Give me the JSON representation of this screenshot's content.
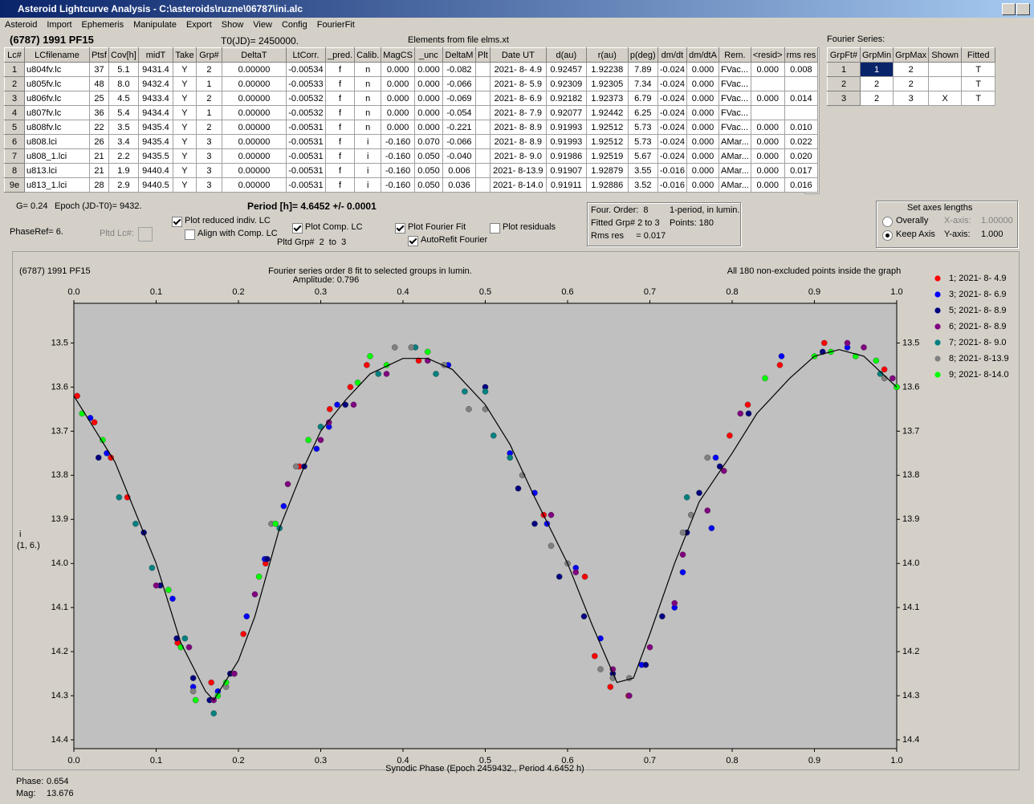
{
  "window": {
    "title": "Asteroid Lightcurve Analysis - C:\\asteroids\\ruzne\\06787\\ini.alc"
  },
  "menu": [
    "Asteroid",
    "Import",
    "Ephemeris",
    "Manipulate",
    "Export",
    "Show",
    "View",
    "Config",
    "FourierFit"
  ],
  "header": {
    "object": "(6787) 1991 PF15",
    "t0": "T0(JD)= 2450000.",
    "elements": "Elements from file elms.xt",
    "fourier_label": "Fourier Series:"
  },
  "table": {
    "columns": [
      "Lc#",
      "LCfilename",
      "Ptsf",
      "Cov[h]",
      "midT",
      "Take",
      "Grp#",
      "DeltaT",
      "LtCorr.",
      "_pred.",
      "Calib.",
      "MagCS",
      "_unc",
      "DeltaM",
      "Plt",
      "Date UT",
      "d(au)",
      "r(au)",
      "p(deg)",
      "dm/dt",
      "dm/dtA",
      "Rem.",
      "<resid>",
      "rms res"
    ],
    "rows": [
      [
        "1",
        "u804fv.lc",
        "37",
        "5.1",
        "9431.4",
        "Y",
        "2",
        "0.00000",
        "-0.00534",
        "f",
        "n",
        "0.000",
        "0.000",
        "-0.082",
        null,
        "2021- 8- 4.9",
        "0.92457",
        "1.92238",
        "7.89",
        "-0.024",
        "0.000",
        "FVac...",
        "0.000",
        "0.008"
      ],
      [
        "2",
        "u805fv.lc",
        "48",
        "8.0",
        "9432.4",
        "Y",
        "1",
        "0.00000",
        "-0.00533",
        "f",
        "n",
        "0.000",
        "0.000",
        "-0.066",
        null,
        "2021- 8- 5.9",
        "0.92309",
        "1.92305",
        "7.34",
        "-0.024",
        "0.000",
        "FVac...",
        null,
        null
      ],
      [
        "3",
        "u806fv.lc",
        "25",
        "4.5",
        "9433.4",
        "Y",
        "2",
        "0.00000",
        "-0.00532",
        "f",
        "n",
        "0.000",
        "0.000",
        "-0.069",
        null,
        "2021- 8- 6.9",
        "0.92182",
        "1.92373",
        "6.79",
        "-0.024",
        "0.000",
        "FVac...",
        "0.000",
        "0.014"
      ],
      [
        "4",
        "u807fv.lc",
        "36",
        "5.4",
        "9434.4",
        "Y",
        "1",
        "0.00000",
        "-0.00532",
        "f",
        "n",
        "0.000",
        "0.000",
        "-0.054",
        null,
        "2021- 8- 7.9",
        "0.92077",
        "1.92442",
        "6.25",
        "-0.024",
        "0.000",
        "FVac...",
        null,
        null
      ],
      [
        "5",
        "u808fv.lc",
        "22",
        "3.5",
        "9435.4",
        "Y",
        "2",
        "0.00000",
        "-0.00531",
        "f",
        "n",
        "0.000",
        "0.000",
        "-0.221",
        null,
        "2021- 8- 8.9",
        "0.91993",
        "1.92512",
        "5.73",
        "-0.024",
        "0.000",
        "FVac...",
        "0.000",
        "0.010"
      ],
      [
        "6",
        "u808.lci",
        "26",
        "3.4",
        "9435.4",
        "Y",
        "3",
        "0.00000",
        "-0.00531",
        "f",
        "i",
        "-0.160",
        "0.070",
        "-0.066",
        null,
        "2021- 8- 8.9",
        "0.91993",
        "1.92512",
        "5.73",
        "-0.024",
        "0.000",
        "AMar...",
        "0.000",
        "0.022"
      ],
      [
        "7",
        "u808_1.lci",
        "21",
        "2.2",
        "9435.5",
        "Y",
        "3",
        "0.00000",
        "-0.00531",
        "f",
        "i",
        "-0.160",
        "0.050",
        "-0.040",
        null,
        "2021- 8- 9.0",
        "0.91986",
        "1.92519",
        "5.67",
        "-0.024",
        "0.000",
        "AMar...",
        "0.000",
        "0.020"
      ],
      [
        "8",
        "u813.lci",
        "21",
        "1.9",
        "9440.4",
        "Y",
        "3",
        "0.00000",
        "-0.00531",
        "f",
        "i",
        "-0.160",
        "0.050",
        "0.006",
        null,
        "2021- 8-13.9",
        "0.91907",
        "1.92879",
        "3.55",
        "-0.016",
        "0.000",
        "AMar...",
        "0.000",
        "0.017"
      ],
      [
        "9e",
        "u813_1.lci",
        "28",
        "2.9",
        "9440.5",
        "Y",
        "3",
        "0.00000",
        "-0.00531",
        "f",
        "i",
        "-0.160",
        "0.050",
        "0.036",
        null,
        "2021- 8-14.0",
        "0.91911",
        "1.92886",
        "3.52",
        "-0.016",
        "0.000",
        "AMar...",
        "0.000",
        "0.016"
      ]
    ]
  },
  "fourier_table": {
    "columns": [
      "GrpFt#",
      "GrpMin",
      "GrpMax",
      "Shown",
      "Fitted"
    ],
    "rows": [
      [
        "1",
        "1",
        "2",
        null,
        "T"
      ],
      [
        "2",
        "2",
        "2",
        null,
        "T"
      ],
      [
        "3",
        "2",
        "3",
        "X",
        "T"
      ]
    ]
  },
  "controls": {
    "g": "G= 0.24",
    "epoch": "Epoch (JD-T0)= 9432.",
    "period": "Period [h]= 4.6452 +/- 0.0001",
    "phase_ref": "PhaseRef= 6.",
    "pltd_lc": "Pltd Lc#:",
    "pltd_grp": "Pltd Grp#  2  to  3",
    "checkboxes": [
      {
        "label": "Plot reduced indiv. LC",
        "checked": true
      },
      {
        "label": "Align with Comp. LC",
        "checked": false
      },
      {
        "label": "Plot Comp. LC",
        "checked": true
      },
      {
        "label": "Plot Fourier Fit",
        "checked": true
      },
      {
        "label": "AutoRefit Fourier",
        "checked": true
      },
      {
        "label": "Plot residuals",
        "checked": false
      }
    ]
  },
  "fit_info": {
    "order": "Four. Order:  8",
    "mode": "1-period, in lumin.",
    "groups": "Fitted Grp# 2 to 3",
    "points": "Points: 180",
    "rms": "Rms res     = 0.017"
  },
  "axes_box": {
    "title": "Set axes lengths",
    "radios": [
      {
        "label": "Overally",
        "checked": false
      },
      {
        "label": "Keep Axis",
        "checked": true
      }
    ],
    "x_label": "X-axis:",
    "x_value": "1.00000",
    "y_label": "Y-axis:",
    "y_value": "1.000"
  },
  "chart_data": {
    "type": "scatter",
    "title": "(6787) 1991 PF15",
    "subtitle": "Fourier series order 8 fit to selected groups in lumin.",
    "amplitude": "Amplitude: 0.796",
    "note": "All 180 non-excluded points inside the graph",
    "x_label": "Synodic Phase (Epoch 2459432., Period 4.6452 h)",
    "y_label": "i",
    "y_label_2": "(1, 6.)",
    "xlim": [
      0,
      1
    ],
    "ylim": [
      14.42,
      13.41
    ],
    "xticks": [
      {
        "value": 0,
        "label": "0.0"
      },
      0.1,
      0.2,
      0.3,
      0.4,
      0.5,
      0.6,
      0.7,
      0.8,
      0.9,
      {
        "value": 1,
        "label": "1.0"
      }
    ],
    "yticks": [
      13.5,
      13.6,
      13.7,
      13.8,
      13.9,
      {
        "value": 14.0,
        "label": "14.0"
      },
      14.1,
      14.2,
      14.3,
      14.4
    ],
    "curve": {
      "color": "#000000",
      "x": [
        0,
        0.05,
        0.1,
        0.13,
        0.16,
        0.17,
        0.2,
        0.22,
        0.25,
        0.28,
        0.3,
        0.33,
        0.36,
        0.4,
        0.43,
        0.46,
        0.5,
        0.53,
        0.56,
        0.6,
        0.63,
        0.66,
        0.68,
        0.7,
        0.73,
        0.76,
        0.8,
        0.83,
        0.87,
        0.9,
        0.93,
        0.96,
        1
      ],
      "y": [
        13.62,
        13.77,
        14.0,
        14.18,
        14.29,
        14.31,
        14.22,
        14.12,
        13.92,
        13.78,
        13.7,
        13.63,
        13.57,
        13.535,
        13.535,
        13.56,
        13.64,
        13.73,
        13.85,
        14.0,
        14.14,
        14.27,
        14.26,
        14.16,
        14.0,
        13.86,
        13.75,
        13.66,
        13.58,
        13.53,
        13.515,
        13.53,
        13.6
      ]
    },
    "series": [
      {
        "name": "1; 2021- 8- 4.9",
        "color": "#ff0000",
        "x": [
          0.004,
          0.025,
          0.045,
          0.065,
          0.126,
          0.167,
          0.206,
          0.233,
          0.274,
          0.311,
          0.336,
          0.356,
          0.419,
          0.571,
          0.621,
          0.633,
          0.652,
          0.674,
          0.797,
          0.819,
          0.858,
          0.912,
          0.985
        ],
        "values": [
          13.62,
          13.68,
          13.76,
          13.85,
          14.18,
          14.27,
          14.16,
          14.0,
          13.78,
          13.65,
          13.6,
          13.55,
          13.54,
          13.89,
          14.03,
          14.21,
          14.28,
          14.3,
          13.71,
          13.64,
          13.55,
          13.5,
          13.56
        ]
      },
      {
        "name": "3; 2021- 8- 6.9",
        "color": "#0000ff",
        "x": [
          0.02,
          0.04,
          0.12,
          0.145,
          0.175,
          0.195,
          0.21,
          0.232,
          0.255,
          0.295,
          0.31,
          0.32,
          0.455,
          0.53,
          0.56,
          0.575,
          0.61,
          0.64,
          0.69,
          0.73,
          0.74,
          0.775,
          0.78,
          0.86,
          0.94
        ],
        "values": [
          13.67,
          13.75,
          14.08,
          14.28,
          14.29,
          14.25,
          14.12,
          13.99,
          13.87,
          13.74,
          13.69,
          13.64,
          13.55,
          13.75,
          13.84,
          13.91,
          14.01,
          14.17,
          14.23,
          14.1,
          14.02,
          13.92,
          13.76,
          13.53,
          13.51
        ]
      },
      {
        "name": "5; 2021- 8- 8.9",
        "color": "#000080",
        "x": [
          0.03,
          0.085,
          0.105,
          0.125,
          0.145,
          0.165,
          0.19,
          0.235,
          0.28,
          0.33,
          0.5,
          0.54,
          0.56,
          0.59,
          0.62,
          0.655,
          0.695,
          0.715,
          0.745,
          0.76,
          0.785,
          0.82,
          0.91
        ],
        "values": [
          13.76,
          13.93,
          14.05,
          14.17,
          14.26,
          14.31,
          14.25,
          13.99,
          13.78,
          13.64,
          13.6,
          13.83,
          13.91,
          14.03,
          14.12,
          14.25,
          14.23,
          14.12,
          13.93,
          13.84,
          13.78,
          13.66,
          13.52
        ]
      },
      {
        "name": "6; 2021- 8- 8.9",
        "color": "#800080",
        "x": [
          0.1,
          0.14,
          0.17,
          0.195,
          0.22,
          0.26,
          0.3,
          0.31,
          0.34,
          0.38,
          0.43,
          0.58,
          0.61,
          0.655,
          0.675,
          0.7,
          0.73,
          0.74,
          0.77,
          0.79,
          0.81,
          0.94,
          0.96,
          0.995
        ],
        "values": [
          14.05,
          14.19,
          14.31,
          14.25,
          14.07,
          13.82,
          13.72,
          13.68,
          13.64,
          13.57,
          13.54,
          13.89,
          14.02,
          14.24,
          14.3,
          14.19,
          14.09,
          13.98,
          13.88,
          13.79,
          13.66,
          13.5,
          13.51,
          13.58
        ]
      },
      {
        "name": "7; 2021- 8- 9.0",
        "color": "#008080",
        "x": [
          0.055,
          0.075,
          0.095,
          0.135,
          0.17,
          0.25,
          0.3,
          0.37,
          0.415,
          0.44,
          0.475,
          0.5,
          0.51,
          0.53,
          0.745,
          0.98
        ],
        "values": [
          13.85,
          13.91,
          14.01,
          14.17,
          14.34,
          13.92,
          13.69,
          13.57,
          13.51,
          13.57,
          13.61,
          13.61,
          13.71,
          13.76,
          13.85,
          13.57
        ]
      },
      {
        "name": "8; 2021- 8-13.9",
        "color": "#808080",
        "x": [
          0.145,
          0.185,
          0.24,
          0.27,
          0.39,
          0.41,
          0.45,
          0.48,
          0.5,
          0.545,
          0.58,
          0.6,
          0.64,
          0.655,
          0.675,
          0.74,
          0.75,
          0.77,
          0.985,
          1
        ],
        "values": [
          14.29,
          14.28,
          13.91,
          13.78,
          13.51,
          13.51,
          13.55,
          13.65,
          13.65,
          13.8,
          13.96,
          14.0,
          14.24,
          14.26,
          14.26,
          13.93,
          13.89,
          13.76,
          13.58,
          13.6
        ]
      },
      {
        "name": "9; 2021- 8-14.0",
        "color": "#00ff00",
        "x": [
          0.01,
          0.035,
          0.115,
          0.13,
          0.148,
          0.175,
          0.185,
          0.225,
          0.245,
          0.285,
          0.345,
          0.36,
          0.38,
          0.43,
          0.84,
          0.9,
          0.92,
          0.95,
          0.975,
          1
        ],
        "values": [
          13.66,
          13.72,
          14.06,
          14.19,
          14.31,
          14.3,
          14.27,
          14.03,
          13.91,
          13.72,
          13.59,
          13.53,
          13.55,
          13.52,
          13.58,
          13.53,
          13.52,
          13.53,
          13.54,
          13.6
        ]
      }
    ]
  },
  "status": {
    "phase_label": "Phase:",
    "phase": "0.654",
    "mag_label": "Mag:",
    "mag": "13.676"
  }
}
